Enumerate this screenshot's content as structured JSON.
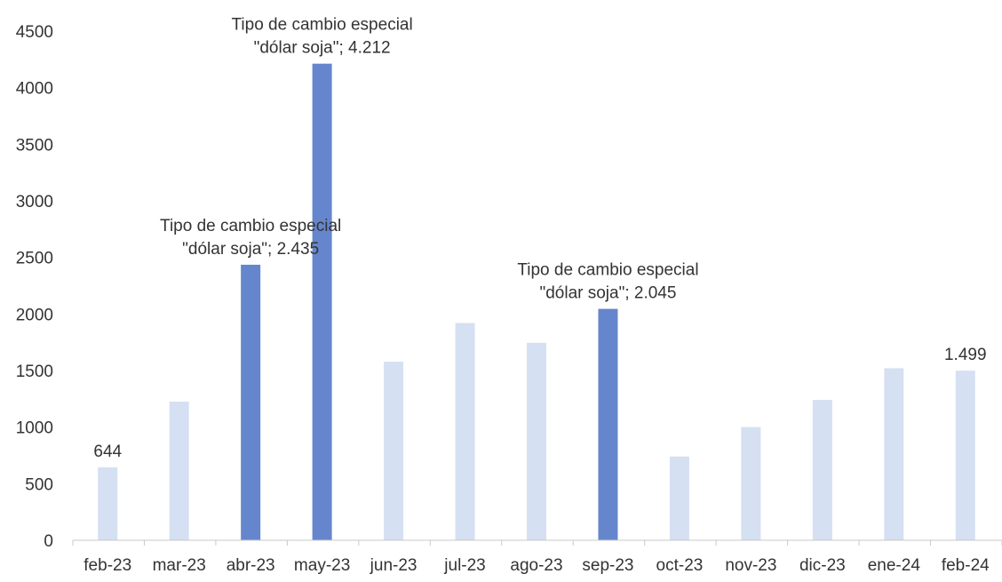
{
  "chart_data": {
    "type": "bar",
    "title": "",
    "xlabel": "",
    "ylabel": "",
    "ylim": [
      0,
      4500
    ],
    "yticks": [
      0,
      500,
      1000,
      1500,
      2000,
      2500,
      3000,
      3500,
      4000,
      4500
    ],
    "grid": false,
    "legend": "none",
    "categories": [
      "feb-23",
      "mar-23",
      "abr-23",
      "may-23",
      "jun-23",
      "jul-23",
      "ago-23",
      "sep-23",
      "oct-23",
      "nov-23",
      "dic-23",
      "ene-24",
      "feb-24"
    ],
    "values": [
      644,
      1225,
      2435,
      4212,
      1578,
      1920,
      1745,
      2045,
      740,
      1000,
      1240,
      1520,
      1499
    ],
    "highlight_indices": [
      2,
      3,
      7
    ],
    "colors": {
      "base": "#d5e0f2",
      "highlight": "#6586cc",
      "axis": "#c8c8c8",
      "text": "#333333"
    },
    "annotations": [
      {
        "index": 0,
        "lines": [
          "644"
        ]
      },
      {
        "index": 2,
        "lines": [
          "Tipo de cambio especial",
          "\"dólar soja\"; 2.435"
        ]
      },
      {
        "index": 3,
        "lines": [
          "Tipo de cambio especial",
          "\"dólar soja\"; 4.212"
        ]
      },
      {
        "index": 7,
        "lines": [
          "Tipo de cambio especial",
          "\"dólar soja\"; 2.045"
        ]
      },
      {
        "index": 12,
        "lines": [
          "1.499"
        ]
      }
    ]
  }
}
